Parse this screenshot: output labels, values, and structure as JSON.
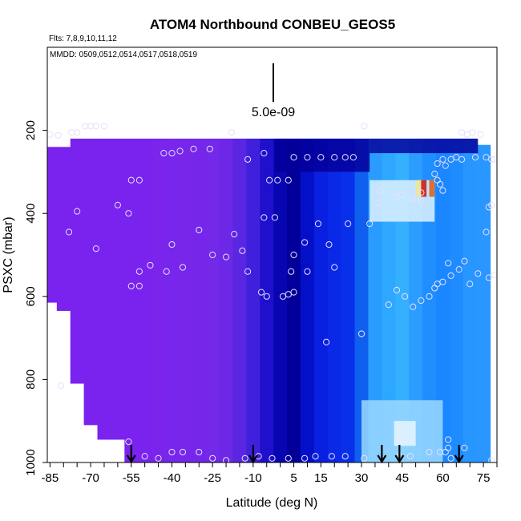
{
  "chart_data": {
    "type": "heatmap",
    "title": "ATOM4 Northbound CONBEU_GEOS5",
    "flights_note": "Flts: 7,8,9,10,11,12",
    "dates_note": "MMDD: 0509,0512,0514,0517,0518,0519",
    "xlabel": "Latitude (deg N)",
    "ylabel": "PSXC (mbar)",
    "x_ticks": [
      "-85",
      "-70",
      "-55",
      "-40",
      "-25",
      "-10",
      "5",
      "15",
      "30",
      "45",
      "60",
      "75"
    ],
    "y_ticks": [
      "200",
      "400",
      "600",
      "800",
      "1000"
    ],
    "xlim": [
      -86,
      80
    ],
    "ylim": [
      1000,
      0
    ],
    "scale_label": "5.0e-09",
    "arrow_latitudes": [
      -55,
      -10,
      37.5,
      44,
      66
    ],
    "colors": {
      "background_field": "#7a22ee",
      "mid_blue": "#0a0fd8",
      "dark_navy": "#03009a",
      "light_blue": "#2a9cff",
      "cyan": "#45c8ff",
      "pale": "#dff2ff",
      "peak_red": "#d01010"
    },
    "columns": [
      {
        "lat": -85,
        "top": 240,
        "bottom": 615,
        "color": "#7a22ee"
      },
      {
        "lat": -80,
        "top": 240,
        "bottom": 635,
        "color": "#7a22ee"
      },
      {
        "lat": -75,
        "top": 220,
        "bottom": 810,
        "color": "#7a22ee"
      },
      {
        "lat": -70,
        "top": 220,
        "bottom": 910,
        "color": "#7a22ee"
      },
      {
        "lat": -65,
        "top": 220,
        "bottom": 945,
        "color": "#7a22ee"
      },
      {
        "lat": -60,
        "top": 220,
        "bottom": 945,
        "color": "#7a22ee"
      },
      {
        "lat": -55,
        "top": 220,
        "bottom": 1000,
        "color": "#7a22ee"
      },
      {
        "lat": -50,
        "top": 220,
        "bottom": 1000,
        "color": "#7a22ee"
      },
      {
        "lat": -45,
        "top": 220,
        "bottom": 1000,
        "color": "#7a24ec"
      },
      {
        "lat": -40,
        "top": 220,
        "bottom": 1000,
        "color": "#7826ec"
      },
      {
        "lat": -35,
        "top": 220,
        "bottom": 1000,
        "color": "#7726ea"
      },
      {
        "lat": -30,
        "top": 220,
        "bottom": 1000,
        "color": "#7626ea"
      },
      {
        "lat": -25,
        "top": 220,
        "bottom": 1000,
        "color": "#7428e8"
      },
      {
        "lat": -20,
        "top": 220,
        "bottom": 1000,
        "color": "#6c28e6"
      },
      {
        "lat": -15,
        "top": 220,
        "bottom": 1000,
        "color": "#5a26e2"
      },
      {
        "lat": -10,
        "top": 220,
        "bottom": 1000,
        "color": "#4020dc"
      },
      {
        "lat": -5,
        "top": 220,
        "bottom": 1000,
        "color": "#1e10cc"
      },
      {
        "lat": 0,
        "top": 220,
        "bottom": 1000,
        "color": "#0806b0"
      },
      {
        "lat": 5,
        "top": 220,
        "bottom": 1000,
        "color": "#03009a"
      },
      {
        "lat": 10,
        "top": 220,
        "bottom": 1000,
        "color": "#0410c8"
      },
      {
        "lat": 15,
        "top": 220,
        "bottom": 1000,
        "color": "#0a20e0"
      },
      {
        "lat": 20,
        "top": 220,
        "bottom": 1000,
        "color": "#0a28e8"
      },
      {
        "lat": 25,
        "top": 220,
        "bottom": 1000,
        "color": "#0830ea"
      },
      {
        "lat": 30,
        "top": 220,
        "bottom": 1000,
        "color": "#1060f0"
      },
      {
        "lat": 35,
        "top": 220,
        "bottom": 1000,
        "color": "#2a9cff"
      },
      {
        "lat": 40,
        "top": 220,
        "bottom": 1000,
        "color": "#2ea8ff"
      },
      {
        "lat": 45,
        "top": 220,
        "bottom": 1000,
        "color": "#35b0ff"
      },
      {
        "lat": 50,
        "top": 220,
        "bottom": 1000,
        "color": "#2c9cff"
      },
      {
        "lat": 55,
        "top": 220,
        "bottom": 1000,
        "color": "#1f8eff"
      },
      {
        "lat": 60,
        "top": 220,
        "bottom": 1000,
        "color": "#1a86ff"
      },
      {
        "lat": 65,
        "top": 220,
        "bottom": 1000,
        "color": "#1e8cff"
      },
      {
        "lat": 70,
        "top": 220,
        "bottom": 1000,
        "color": "#2796ff"
      },
      {
        "lat": 75,
        "top": 235,
        "bottom": 1000,
        "color": "#2a96ff"
      }
    ],
    "overlays": [
      {
        "lat0": -2,
        "lat1": 33,
        "p0": 220,
        "p1": 300,
        "color": "#03009a"
      },
      {
        "lat0": 33,
        "lat1": 73,
        "p0": 220,
        "p1": 255,
        "color": "#05069e"
      },
      {
        "lat0": 33,
        "lat1": 57,
        "p0": 320,
        "p1": 420,
        "color": "#dff2ff"
      },
      {
        "lat0": 50,
        "lat1": 53,
        "p0": 320,
        "p1": 360,
        "color": "#f0e68c"
      },
      {
        "lat0": 52,
        "lat1": 54,
        "p0": 320,
        "p1": 360,
        "color": "#d01010"
      },
      {
        "lat0": 55,
        "lat1": 57,
        "p0": 320,
        "p1": 360,
        "color": "#e05a10"
      },
      {
        "lat0": 30,
        "lat1": 60,
        "p0": 850,
        "p1": 1000,
        "color": "#9ad8ff"
      },
      {
        "lat0": 42,
        "lat1": 50,
        "p0": 900,
        "p1": 960,
        "color": "#e8f6ff"
      }
    ],
    "points": [
      [
        -85,
        210
      ],
      [
        -82,
        212
      ],
      [
        -77,
        205
      ],
      [
        -75,
        205
      ],
      [
        -72,
        190
      ],
      [
        -70,
        190
      ],
      [
        -68,
        190
      ],
      [
        -65,
        190
      ],
      [
        -60,
        380
      ],
      [
        -55,
        320
      ],
      [
        -52,
        320
      ],
      [
        -43,
        255
      ],
      [
        -40,
        255
      ],
      [
        -37,
        250
      ],
      [
        -32,
        245
      ],
      [
        -26,
        245
      ],
      [
        -18,
        205
      ],
      [
        -12,
        270
      ],
      [
        -6,
        255
      ],
      [
        -4,
        320
      ],
      [
        -1,
        320
      ],
      [
        3,
        320
      ],
      [
        5,
        265
      ],
      [
        10,
        265
      ],
      [
        15,
        265
      ],
      [
        20,
        265
      ],
      [
        24,
        265
      ],
      [
        27,
        265
      ],
      [
        31,
        190
      ],
      [
        -78,
        445
      ],
      [
        -75,
        395
      ],
      [
        -68,
        485
      ],
      [
        -56,
        400
      ],
      [
        -52,
        540
      ],
      [
        -48,
        525
      ],
      [
        -42,
        540
      ],
      [
        -40,
        475
      ],
      [
        -36,
        530
      ],
      [
        -30,
        440
      ],
      [
        -25,
        500
      ],
      [
        -20,
        505
      ],
      [
        -17,
        450
      ],
      [
        -14,
        490
      ],
      [
        -12,
        540
      ],
      [
        -6,
        410
      ],
      [
        -2,
        410
      ],
      [
        4,
        540
      ],
      [
        5,
        500
      ],
      [
        9,
        470
      ],
      [
        10,
        540
      ],
      [
        14,
        425
      ],
      [
        18,
        475
      ],
      [
        20,
        530
      ],
      [
        25,
        425
      ],
      [
        33,
        425
      ],
      [
        -55,
        575
      ],
      [
        -52,
        575
      ],
      [
        -7,
        590
      ],
      [
        -5,
        600
      ],
      [
        3,
        595
      ],
      [
        1,
        600
      ],
      [
        5,
        590
      ],
      [
        17,
        710
      ],
      [
        30,
        690
      ],
      [
        40,
        620
      ],
      [
        43,
        585
      ],
      [
        46,
        600
      ],
      [
        49,
        625
      ],
      [
        52,
        610
      ],
      [
        55,
        600
      ],
      [
        57,
        580
      ],
      [
        58,
        570
      ],
      [
        60,
        565
      ],
      [
        63,
        550
      ],
      [
        62,
        520
      ],
      [
        66,
        535
      ],
      [
        68,
        515
      ],
      [
        70,
        570
      ],
      [
        73,
        545
      ],
      [
        77,
        555
      ],
      [
        79,
        548
      ],
      [
        76,
        445
      ],
      [
        77,
        385
      ],
      [
        -81,
        815
      ],
      [
        -56,
        950
      ],
      [
        -50,
        985
      ],
      [
        -45,
        990
      ],
      [
        -40,
        975
      ],
      [
        -36,
        975
      ],
      [
        -30,
        975
      ],
      [
        -25,
        990
      ],
      [
        -20,
        995
      ],
      [
        -13,
        990
      ],
      [
        -8,
        985
      ],
      [
        -3,
        990
      ],
      [
        3,
        990
      ],
      [
        9,
        990
      ],
      [
        13,
        985
      ],
      [
        19,
        985
      ],
      [
        24,
        985
      ],
      [
        31,
        990
      ],
      [
        44,
        985
      ],
      [
        48,
        985
      ],
      [
        55,
        975
      ],
      [
        59,
        975
      ],
      [
        61,
        975
      ],
      [
        62,
        945
      ],
      [
        62,
        965
      ],
      [
        63,
        990
      ],
      [
        68,
        965
      ],
      [
        78,
        995
      ],
      [
        58,
        280
      ],
      [
        60,
        270
      ],
      [
        61,
        285
      ],
      [
        63,
        270
      ],
      [
        65,
        265
      ],
      [
        67,
        270
      ],
      [
        72,
        265
      ],
      [
        76,
        265
      ],
      [
        78,
        270
      ],
      [
        79,
        270
      ],
      [
        67,
        205
      ],
      [
        69,
        210
      ],
      [
        71,
        205
      ],
      [
        74,
        210
      ],
      [
        58,
        320
      ],
      [
        57,
        305
      ],
      [
        59,
        330
      ],
      [
        60,
        345
      ],
      [
        52,
        350
      ],
      [
        52,
        370
      ],
      [
        49,
        365
      ],
      [
        45,
        355
      ],
      [
        43,
        360
      ],
      [
        37,
        345
      ],
      [
        36,
        375
      ],
      [
        78,
        380
      ]
    ]
  }
}
